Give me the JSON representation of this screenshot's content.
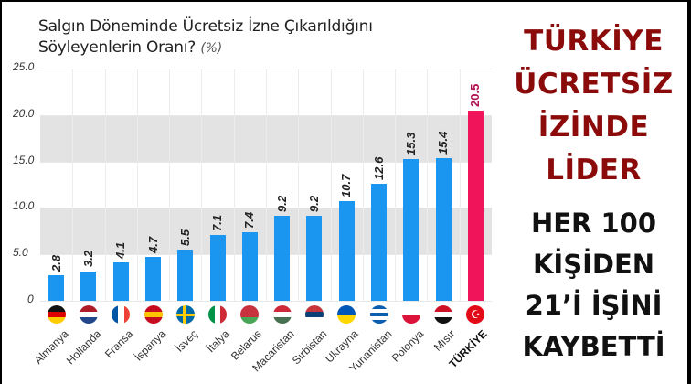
{
  "title": {
    "line1": "Salgın Döneminde Ücretsiz İzne Çıkarıldığını",
    "line2": "Söyleyenlerin Oranı?",
    "unit": "(%)"
  },
  "headline": {
    "red_lines": [
      "TÜRKİYE",
      "ÜCRETSİZ",
      "İZİNDE",
      "LİDER"
    ],
    "black_lines": [
      "HER 100",
      "KİŞİDEN",
      "21’İ İŞİNİ",
      "KAYBETTİ"
    ]
  },
  "colors": {
    "bar": "#1a96f0",
    "highlight_bar": "#f0145a",
    "highlight_label": "#b01050",
    "headline_red": "#8b0a0a",
    "band": "#e3e3e3"
  },
  "chart_data": {
    "type": "bar",
    "title": "Salgın Döneminde Ücretsiz İzne Çıkarıldığını Söyleyenlerin Oranı? (%)",
    "xlabel": "",
    "ylabel": "%",
    "ylim": [
      0,
      25
    ],
    "yticks": [
      "0",
      "5.0",
      "10.0",
      "15.0",
      "20.0",
      "25.0"
    ],
    "grid": true,
    "shaded_bands": [
      [
        5,
        10
      ],
      [
        15,
        20
      ]
    ],
    "categories": [
      "Almanya",
      "Hollanda",
      "Fransa",
      "İspanya",
      "İsveç",
      "İtalya",
      "Belarus",
      "Macaristan",
      "Sırbistan",
      "Ukrayna",
      "Yunanistan",
      "Polonya",
      "Mısır",
      "TÜRKİYE"
    ],
    "values": [
      2.8,
      3.2,
      4.1,
      4.7,
      5.5,
      7.1,
      7.4,
      9.2,
      9.2,
      10.7,
      12.6,
      15.3,
      15.4,
      20.5
    ],
    "value_labels": [
      "2.8",
      "3.2",
      "4.1",
      "4.7",
      "5.5",
      "7.1",
      "7.4",
      "9.2",
      "9.2",
      "10.7",
      "12.6",
      "15.3",
      "15.4",
      "20.5"
    ],
    "highlight": "TÜRKİYE",
    "legend": null
  }
}
